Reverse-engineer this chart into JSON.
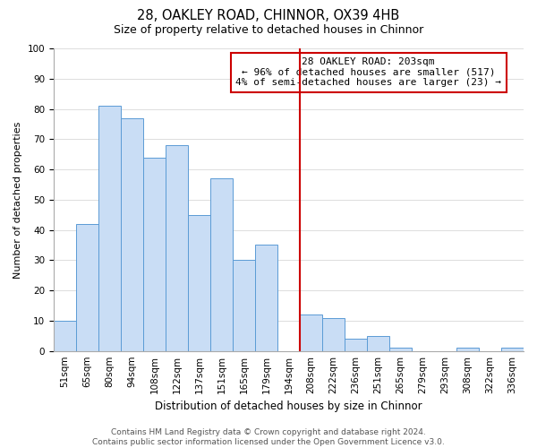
{
  "title": "28, OAKLEY ROAD, CHINNOR, OX39 4HB",
  "subtitle": "Size of property relative to detached houses in Chinnor",
  "xlabel": "Distribution of detached houses by size in Chinnor",
  "ylabel": "Number of detached properties",
  "categories": [
    "51sqm",
    "65sqm",
    "80sqm",
    "94sqm",
    "108sqm",
    "122sqm",
    "137sqm",
    "151sqm",
    "165sqm",
    "179sqm",
    "194sqm",
    "208sqm",
    "222sqm",
    "236sqm",
    "251sqm",
    "265sqm",
    "279sqm",
    "293sqm",
    "308sqm",
    "322sqm",
    "336sqm"
  ],
  "values": [
    10,
    42,
    81,
    77,
    64,
    68,
    45,
    57,
    30,
    35,
    0,
    12,
    11,
    4,
    5,
    1,
    0,
    0,
    1,
    0,
    1
  ],
  "bar_color": "#c9ddf5",
  "bar_edge_color": "#5b9bd5",
  "ylim": [
    0,
    100
  ],
  "yticks": [
    0,
    10,
    20,
    30,
    40,
    50,
    60,
    70,
    80,
    90,
    100
  ],
  "vline_color": "#cc0000",
  "annotation_title": "28 OAKLEY ROAD: 203sqm",
  "annotation_line1": "← 96% of detached houses are smaller (517)",
  "annotation_line2": "4% of semi-detached houses are larger (23) →",
  "footer_line1": "Contains HM Land Registry data © Crown copyright and database right 2024.",
  "footer_line2": "Contains public sector information licensed under the Open Government Licence v3.0.",
  "title_fontsize": 10.5,
  "subtitle_fontsize": 9,
  "xlabel_fontsize": 8.5,
  "ylabel_fontsize": 8,
  "tick_fontsize": 7.5,
  "annotation_fontsize": 8,
  "footer_fontsize": 6.5
}
